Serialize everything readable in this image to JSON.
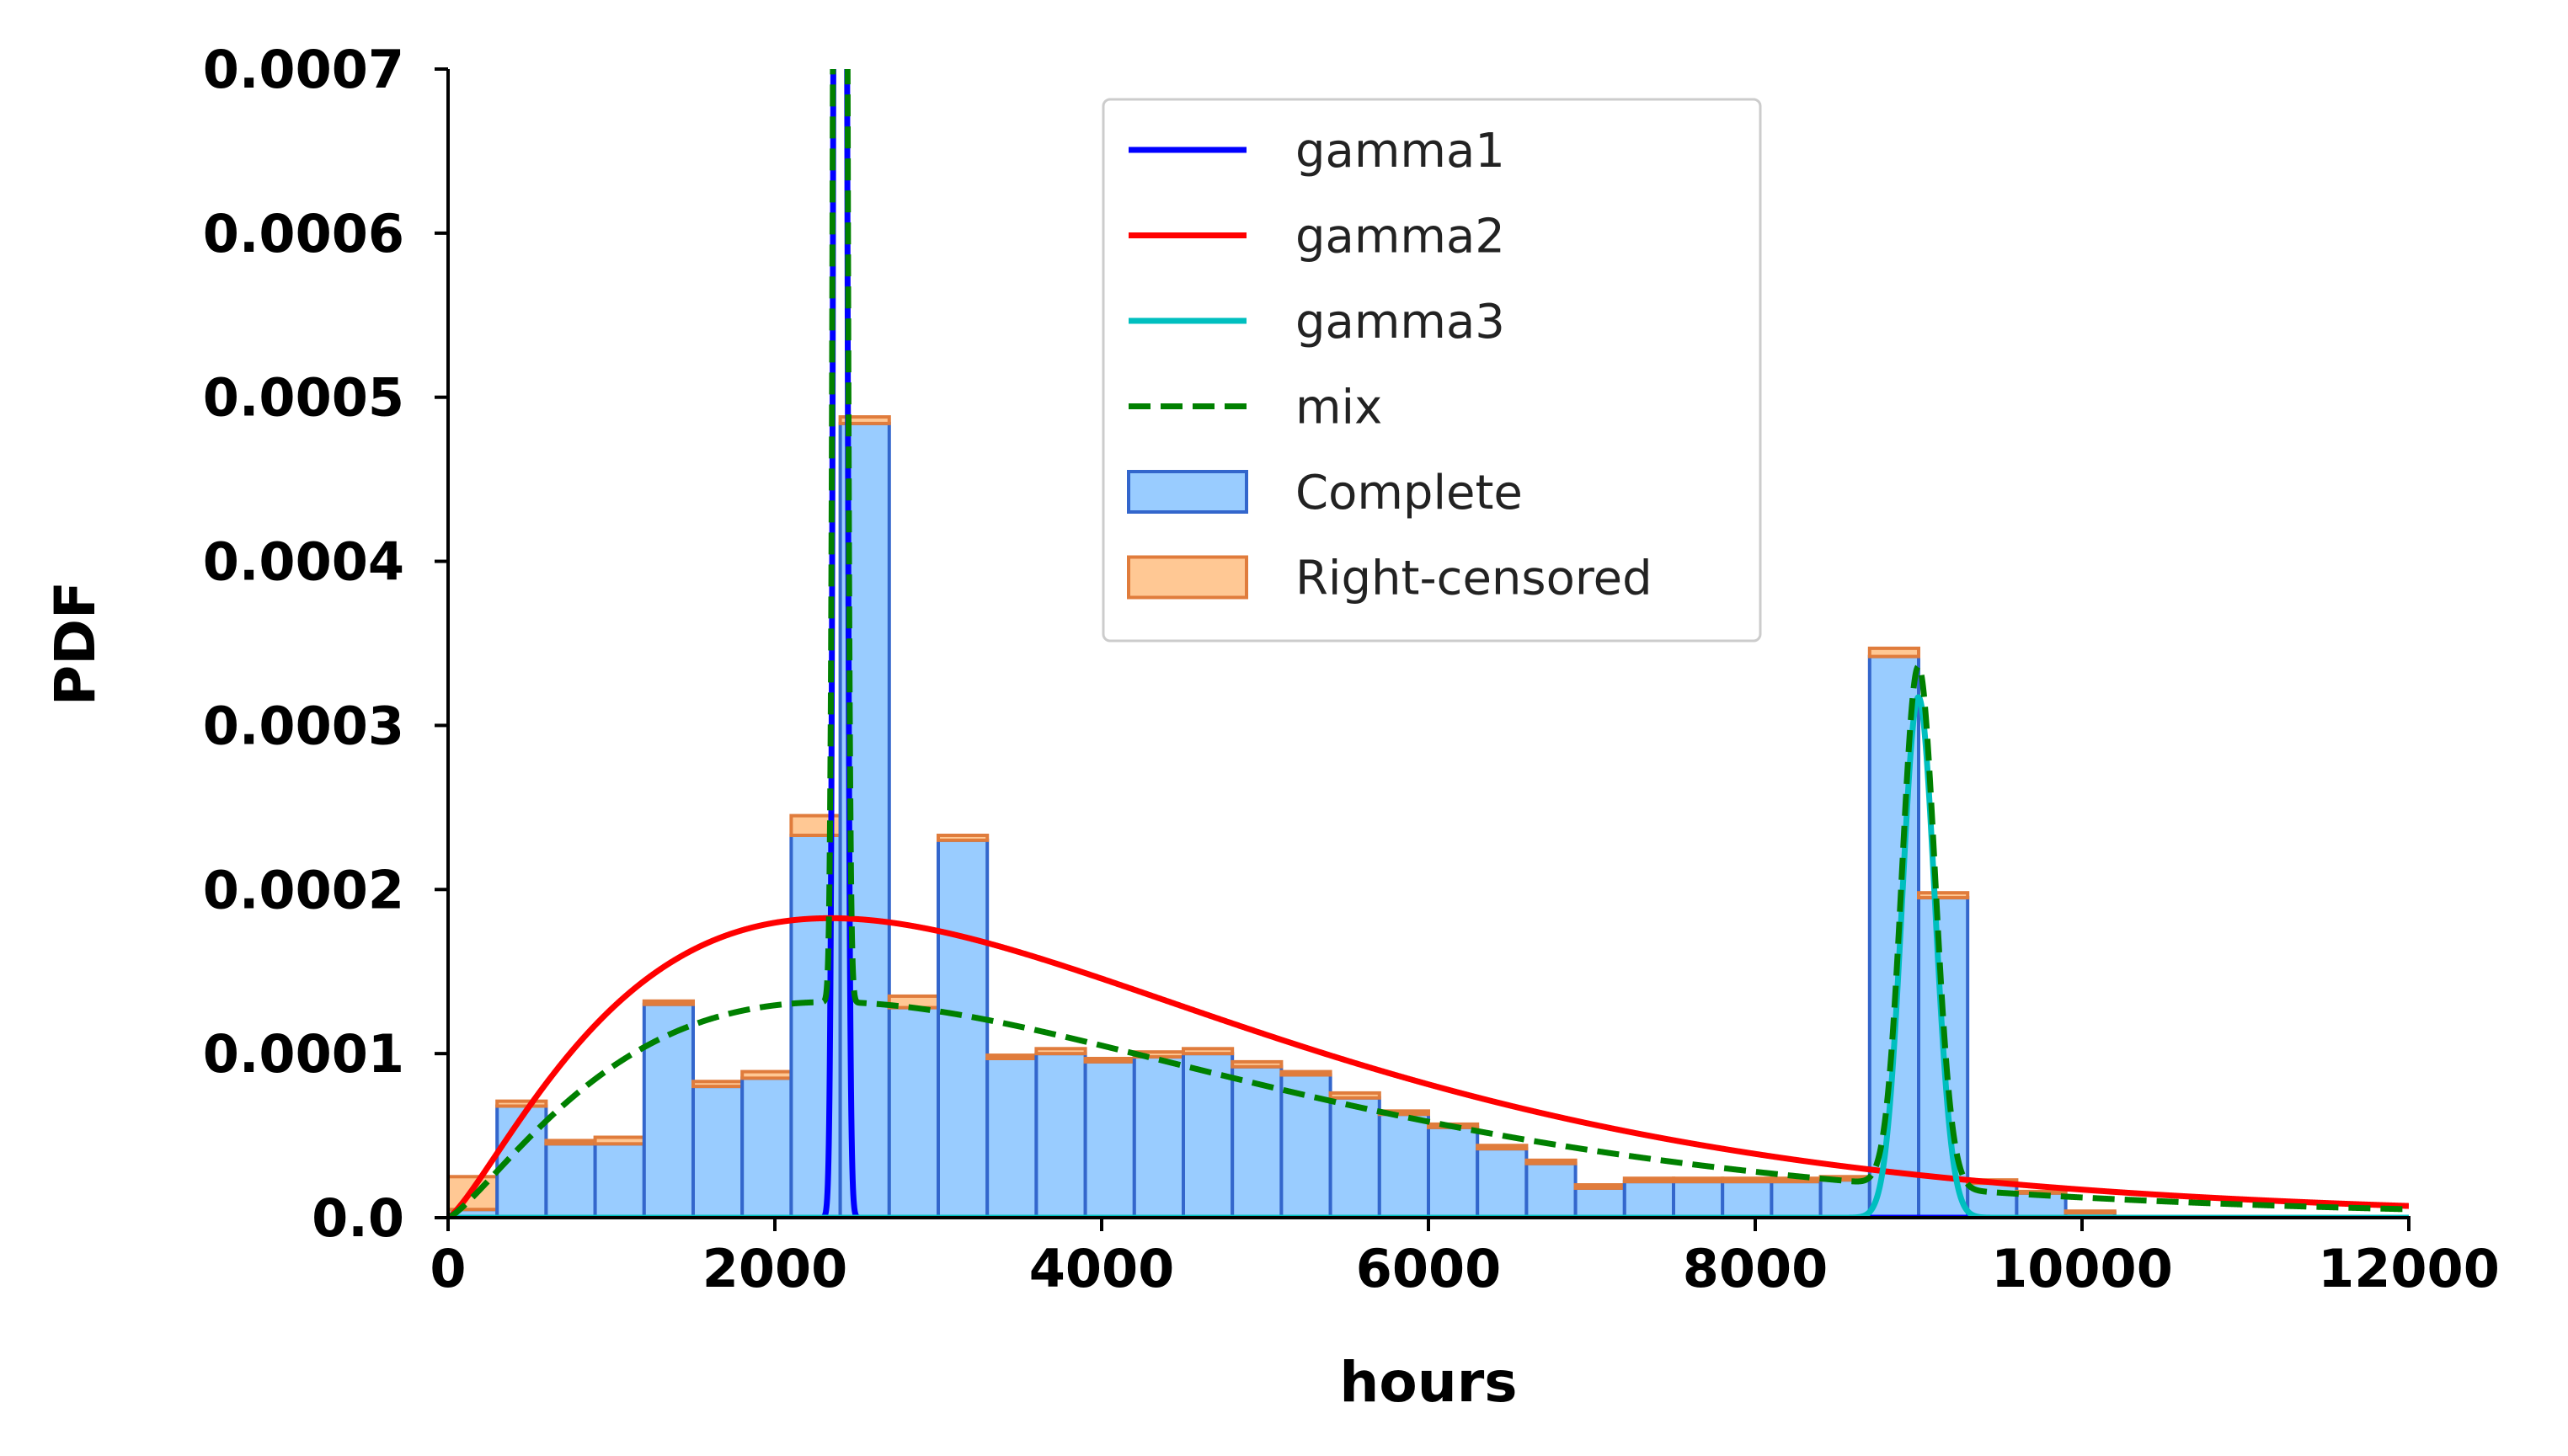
{
  "chart_data": {
    "type": "histogram",
    "xlabel": "hours",
    "ylabel": "PDF",
    "xlim": [
      0,
      12000
    ],
    "ylim": [
      0,
      0.0007
    ],
    "x_ticks": [
      0,
      2000,
      4000,
      6000,
      8000,
      10000,
      12000
    ],
    "x_tick_labels": [
      "0",
      "2000",
      "4000",
      "6000",
      "8000",
      "10000",
      "12000"
    ],
    "y_ticks": [
      0,
      0.0001,
      0.0002,
      0.0003,
      0.0004,
      0.0005,
      0.0006,
      0.0007
    ],
    "y_tick_labels": [
      "0.0",
      "0.0001",
      "0.0002",
      "0.0003",
      "0.0004",
      "0.0005",
      "0.0006",
      "0.0007"
    ],
    "grid": false,
    "legend_position": "top-center",
    "bin_width": 300,
    "bin_starts": [
      0,
      300,
      600,
      900,
      1200,
      1500,
      1800,
      2100,
      2400,
      2700,
      3000,
      3300,
      3600,
      3900,
      4200,
      4500,
      4800,
      5100,
      5400,
      5700,
      6000,
      6300,
      6600,
      6900,
      7200,
      7500,
      7800,
      8100,
      8400,
      8700,
      9000,
      9300,
      9600,
      9900
    ],
    "series": [
      {
        "name": "Complete",
        "kind": "bar",
        "color": "#99ccff",
        "edge_color": "#3366cc",
        "values": [
          5e-06,
          6.8e-05,
          4.5e-05,
          4.5e-05,
          0.00013,
          8e-05,
          8.5e-05,
          0.000233,
          0.000484,
          0.000128,
          0.00023,
          9.7e-05,
          0.0001,
          9.5e-05,
          9.8e-05,
          0.0001,
          9.2e-05,
          8.7e-05,
          7.3e-05,
          6.3e-05,
          5.5e-05,
          4.2e-05,
          3.3e-05,
          1.8e-05,
          2.2e-05,
          2.2e-05,
          2.2e-05,
          2.2e-05,
          2.3e-05,
          0.000342,
          0.000195,
          2.1e-05,
          1.5e-05,
          3e-06
        ]
      },
      {
        "name": "Right-censored",
        "kind": "bar",
        "color": "#ffc894",
        "edge_color": "#e07c3c",
        "values": [
          2e-05,
          3e-06,
          2e-06,
          4e-06,
          2e-06,
          3e-06,
          4e-06,
          1.2e-05,
          4e-06,
          7e-06,
          3e-06,
          2e-06,
          3e-06,
          2e-06,
          3e-06,
          3e-06,
          3e-06,
          2e-06,
          3e-06,
          2e-06,
          2e-06,
          2e-06,
          2e-06,
          2e-06,
          2e-06,
          2e-06,
          2e-06,
          2e-06,
          2e-06,
          5e-06,
          3e-06,
          2e-06,
          1e-06,
          1e-06
        ]
      },
      {
        "name": "gamma1",
        "kind": "line",
        "color": "#0000ff",
        "dash": "solid",
        "distribution": "gamma",
        "shape": 10000,
        "scale": 0.24,
        "weight": 0.2
      },
      {
        "name": "gamma2",
        "kind": "line",
        "color": "#ff0000",
        "dash": "solid",
        "distribution": "gamma",
        "shape": 2.3,
        "scale": 1800,
        "weight": 1
      },
      {
        "name": "gamma3",
        "kind": "line",
        "color": "#00bfbf",
        "dash": "solid",
        "distribution": "gamma",
        "shape": 8000,
        "scale": 1.125,
        "weight": 0.08
      },
      {
        "name": "mix",
        "kind": "line",
        "color": "#008000",
        "dash": "dashed",
        "distribution": "mixture",
        "components": [
          "gamma1",
          "gamma2",
          "gamma3"
        ],
        "mix_weights": [
          0.2,
          0.72,
          0.08
        ]
      }
    ],
    "legend": [
      {
        "label": "gamma1",
        "style": "line",
        "color": "#0000ff"
      },
      {
        "label": "gamma2",
        "style": "line",
        "color": "#ff0000"
      },
      {
        "label": "gamma3",
        "style": "line",
        "color": "#00bfbf"
      },
      {
        "label": "mix",
        "style": "dashed",
        "color": "#008000"
      },
      {
        "label": "Complete",
        "style": "patch",
        "color": "#99ccff",
        "edge_color": "#3366cc"
      },
      {
        "label": "Right-censored",
        "style": "patch",
        "color": "#ffc894",
        "edge_color": "#e07c3c"
      }
    ]
  }
}
